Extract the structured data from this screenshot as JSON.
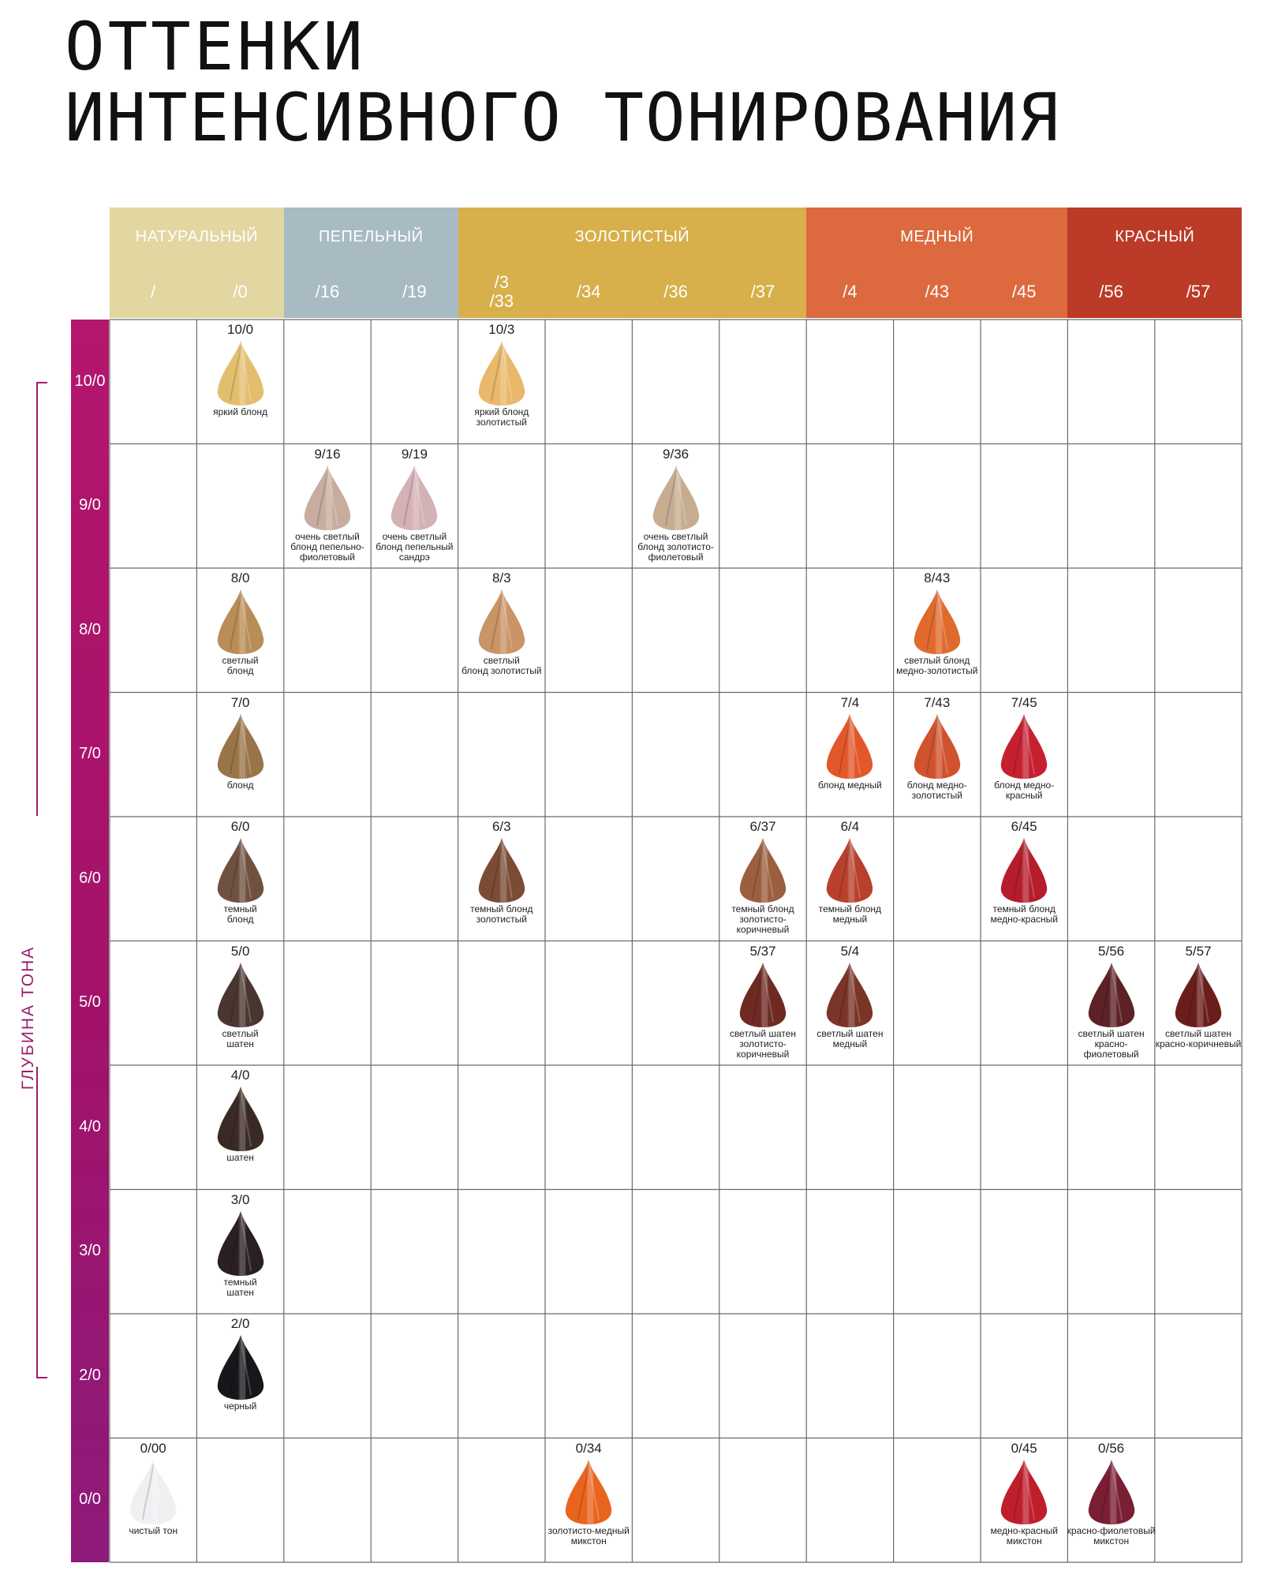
{
  "title": {
    "line1": "ОТТЕНКИ",
    "line2": "ИНТЕНСИВНОГО ТОНИРОВАНИЯ"
  },
  "categories": [
    {
      "label": "НАТУРАЛЬНЫЙ",
      "color": "#e2d7a1",
      "cols": [
        0,
        1
      ]
    },
    {
      "label": "ПЕПЕЛЬНЫЙ",
      "color": "#a8bac2",
      "cols": [
        2,
        3
      ]
    },
    {
      "label": "ЗОЛОТИСТЫЙ",
      "color": "#d7b04b",
      "cols": [
        4,
        5,
        6,
        7
      ]
    },
    {
      "label": "МЕДНЫЙ",
      "color": "#dc6a3e",
      "cols": [
        8,
        9,
        10
      ]
    },
    {
      "label": "КРАСНЫЙ",
      "color": "#bb3b28",
      "cols": [
        11,
        12
      ]
    }
  ],
  "columns": [
    "/",
    "/0",
    "/16",
    "/19",
    "/3\n/33",
    "/34",
    "/36",
    "/37",
    "/4",
    "/43",
    "/45",
    "/56",
    "/57"
  ],
  "column_colors": [
    "#e2d7a1",
    "#e2d7a1",
    "#a8bac2",
    "#a8bac2",
    "#d7b04b",
    "#d7b04b",
    "#d7b04b",
    "#d7b04b",
    "#dc6a3e",
    "#dc6a3e",
    "#dc6a3e",
    "#bb3b28",
    "#bb3b28"
  ],
  "rows": [
    "10/0",
    "9/0",
    "8/0",
    "7/0",
    "6/0",
    "5/0",
    "4/0",
    "3/0",
    "2/0",
    "0/0"
  ],
  "axis_label": "ГЛУБИНА ТОНА",
  "shades": [
    {
      "row": 0,
      "col": 1,
      "code": "10/0",
      "name": "яркий блонд",
      "color": "#e3be6f"
    },
    {
      "row": 0,
      "col": 4,
      "code": "10/3",
      "name": "яркий блонд\nзолотистый",
      "color": "#e9b86b"
    },
    {
      "row": 1,
      "col": 2,
      "code": "9/16",
      "name": "очень светлый\nблонд пепельно-\nфиолетовый",
      "color": "#c8ac9f"
    },
    {
      "row": 1,
      "col": 3,
      "code": "9/19",
      "name": "очень светлый\nблонд пепельный\nсандрэ",
      "color": "#d4b1b5"
    },
    {
      "row": 1,
      "col": 6,
      "code": "9/36",
      "name": "очень светлый\nблонд золотисто-\nфиолетовый",
      "color": "#c7ad90"
    },
    {
      "row": 2,
      "col": 1,
      "code": "8/0",
      "name": "светлый\nблонд",
      "color": "#b98d58"
    },
    {
      "row": 2,
      "col": 4,
      "code": "8/3",
      "name": "светлый\nблонд золотистый",
      "color": "#c99466"
    },
    {
      "row": 2,
      "col": 9,
      "code": "8/43",
      "name": "светлый блонд\nмедно-золотистый",
      "color": "#e06a2e"
    },
    {
      "row": 3,
      "col": 1,
      "code": "7/0",
      "name": "блонд",
      "color": "#9a7449"
    },
    {
      "row": 3,
      "col": 8,
      "code": "7/4",
      "name": "блонд медный",
      "color": "#e2582a"
    },
    {
      "row": 3,
      "col": 9,
      "code": "7/43",
      "name": "блонд медно-\nзолотистый",
      "color": "#d0522e"
    },
    {
      "row": 3,
      "col": 10,
      "code": "7/45",
      "name": "блонд медно-\nкрасный",
      "color": "#c52030"
    },
    {
      "row": 4,
      "col": 1,
      "code": "6/0",
      "name": "темный\nблонд",
      "color": "#6f5140"
    },
    {
      "row": 4,
      "col": 4,
      "code": "6/3",
      "name": "темный блонд\nзолотистый",
      "color": "#7a4c34"
    },
    {
      "row": 4,
      "col": 7,
      "code": "6/37",
      "name": "темный блонд\nзолотисто-\nкоричневый",
      "color": "#9a5f3e"
    },
    {
      "row": 4,
      "col": 8,
      "code": "6/4",
      "name": "темный блонд\nмедный",
      "color": "#b8402c"
    },
    {
      "row": 4,
      "col": 10,
      "code": "6/45",
      "name": "темный блонд\nмедно-красный",
      "color": "#b51d2c"
    },
    {
      "row": 5,
      "col": 1,
      "code": "5/0",
      "name": "светлый\nшатен",
      "color": "#4a3631"
    },
    {
      "row": 5,
      "col": 7,
      "code": "5/37",
      "name": "светлый шатен\nзолотисто-\nкоричневый",
      "color": "#6e2a22"
    },
    {
      "row": 5,
      "col": 8,
      "code": "5/4",
      "name": "светлый шатен\nмедный",
      "color": "#7a3428"
    },
    {
      "row": 5,
      "col": 11,
      "code": "5/56",
      "name": "светлый шатен\nкрасно-\nфиолетовый",
      "color": "#5c2226"
    },
    {
      "row": 5,
      "col": 12,
      "code": "5/57",
      "name": "светлый шатен\nкрасно-коричневый",
      "color": "#6a1e1c"
    },
    {
      "row": 6,
      "col": 1,
      "code": "4/0",
      "name": "шатен",
      "color": "#3a2a26"
    },
    {
      "row": 7,
      "col": 1,
      "code": "3/0",
      "name": "темный\nшатен",
      "color": "#2a2024"
    },
    {
      "row": 8,
      "col": 1,
      "code": "2/0",
      "name": "черный",
      "color": "#17171b"
    },
    {
      "row": 9,
      "col": 0,
      "code": "0/00",
      "name": "чистый тон",
      "color": "#eef0f2"
    },
    {
      "row": 9,
      "col": 5,
      "code": "0/34",
      "name": "золотисто-медный\nмикстон",
      "color": "#e9641e"
    },
    {
      "row": 9,
      "col": 10,
      "code": "0/45",
      "name": "медно-красный\nмикстон",
      "color": "#c01e2c"
    },
    {
      "row": 9,
      "col": 11,
      "code": "0/56",
      "name": "красно-фиолетовый\nмикстон",
      "color": "#7a1e34"
    }
  ]
}
